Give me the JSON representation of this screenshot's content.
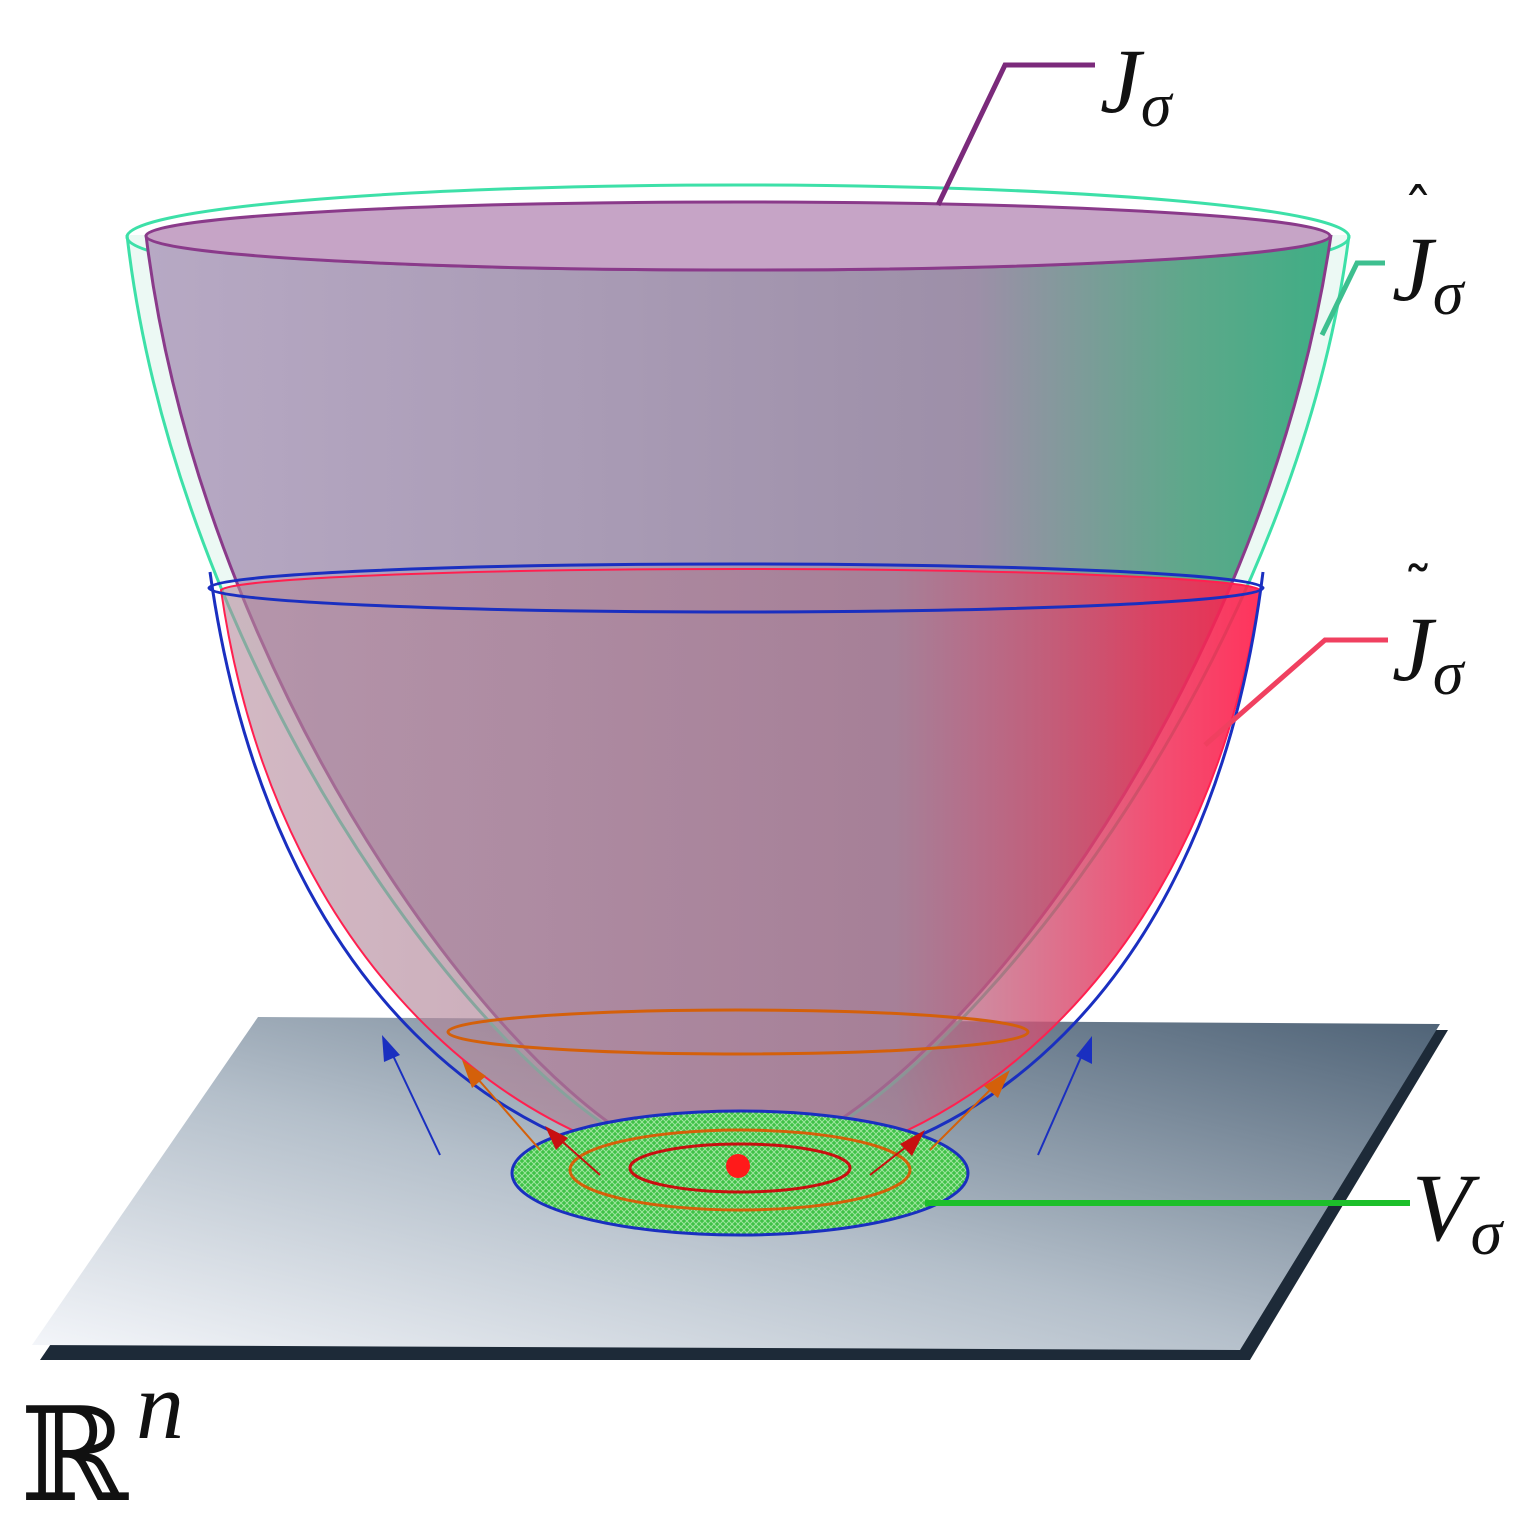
{
  "labels": [
    {
      "base": "J",
      "sub": "σ"
    },
    {
      "base": "J",
      "accent": "ˆ",
      "sub": "σ"
    },
    {
      "base": "J",
      "accent": "˜",
      "sub": "σ"
    },
    {
      "base": "V",
      "sub": "σ"
    }
  ],
  "space": {
    "base": "ℝ",
    "sup": "n"
  }
}
